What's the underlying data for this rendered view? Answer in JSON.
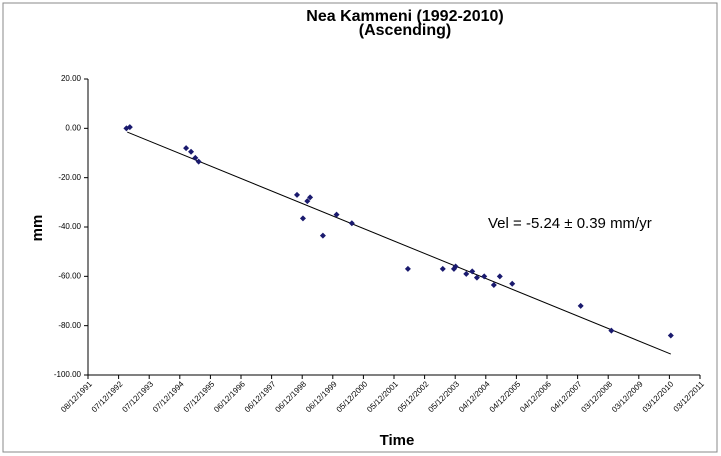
{
  "chart_data": {
    "type": "scatter",
    "title": "Nea Kammeni (1992-2010)",
    "subtitle": "(Ascending)",
    "x_label": "Time",
    "y_label": "mm",
    "annotation": "Vel = -5.24 ± 0.39 mm/yr",
    "color": "#1a1a6e",
    "x": [
      "1993-03-10",
      "1993-04-20",
      "1995-02-20",
      "1995-04-20",
      "1995-06-10",
      "1995-07-20",
      "1998-10-05",
      "1998-12-15",
      "1999-02-05",
      "1999-03-10",
      "1999-08-10",
      "2000-01-20",
      "2000-07-20",
      "2002-05-20",
      "2003-07-10",
      "2003-11-20",
      "2003-12-10",
      "2004-04-15",
      "2004-06-25",
      "2004-08-20",
      "2004-11-15",
      "2005-03-10",
      "2005-05-20",
      "2005-10-15",
      "2008-01-10",
      "2009-01-10",
      "2010-12-20"
    ],
    "values": [
      0,
      0.5,
      -8,
      -9.5,
      -12,
      -13.5,
      -27,
      -36.5,
      -29.5,
      -28,
      -43.5,
      -35,
      -38.5,
      -57,
      -57,
      -57,
      -56,
      -59,
      -58,
      -60.5,
      -60,
      -63.5,
      -60,
      -63,
      -72,
      -82,
      -84
    ],
    "trendline": {
      "x": [
        "1993-03-20",
        "2010-12-20"
      ],
      "values": [
        -1.5,
        -91.5
      ],
      "color": "#000000"
    },
    "xlim": [
      "1991-12-08",
      "2011-12-03"
    ],
    "xticks": [
      {
        "value": "1991-12-08",
        "label": "08/12/1991"
      },
      {
        "value": "1992-12-07",
        "label": "07/12/1992"
      },
      {
        "value": "1993-12-07",
        "label": "07/12/1993"
      },
      {
        "value": "1994-12-07",
        "label": "07/12/1994"
      },
      {
        "value": "1995-12-07",
        "label": "07/12/1995"
      },
      {
        "value": "1996-12-06",
        "label": "06/12/1996"
      },
      {
        "value": "1997-12-06",
        "label": "06/12/1997"
      },
      {
        "value": "1998-12-06",
        "label": "06/12/1998"
      },
      {
        "value": "1999-12-06",
        "label": "06/12/1999"
      },
      {
        "value": "2000-12-05",
        "label": "05/12/2000"
      },
      {
        "value": "2001-12-05",
        "label": "05/12/2001"
      },
      {
        "value": "2002-12-05",
        "label": "05/12/2002"
      },
      {
        "value": "2003-12-05",
        "label": "05/12/2003"
      },
      {
        "value": "2004-12-04",
        "label": "04/12/2004"
      },
      {
        "value": "2005-12-04",
        "label": "04/12/2005"
      },
      {
        "value": "2006-12-04",
        "label": "04/12/2006"
      },
      {
        "value": "2007-12-04",
        "label": "04/12/2007"
      },
      {
        "value": "2008-12-03",
        "label": "03/12/2008"
      },
      {
        "value": "2009-12-03",
        "label": "03/12/2009"
      },
      {
        "value": "2010-12-03",
        "label": "03/12/2010"
      },
      {
        "value": "2011-12-03",
        "label": "03/12/2011"
      }
    ],
    "ylim": [
      -100,
      20
    ],
    "yticks": [
      {
        "value": 20,
        "label": "20.00"
      },
      {
        "value": 0,
        "label": "0.00"
      },
      {
        "value": -20,
        "label": "-20.00"
      },
      {
        "value": -40,
        "label": "-40.00"
      },
      {
        "value": -60,
        "label": "-60.00"
      },
      {
        "value": -80,
        "label": "-80.00"
      },
      {
        "value": -100,
        "label": "-100.00"
      }
    ],
    "grid": false
  }
}
